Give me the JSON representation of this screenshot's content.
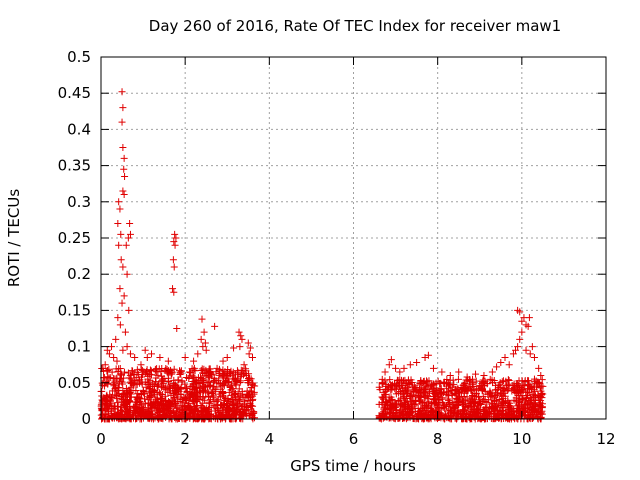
{
  "chart_data": {
    "type": "scatter",
    "title": "Day 260 of 2016, Rate Of TEC Index for receiver maw1",
    "xlabel": "GPS time / hours",
    "ylabel": "ROTI / TECUs",
    "xlim": [
      0,
      12
    ],
    "ylim": [
      0,
      0.5
    ],
    "xticks": [
      0,
      2,
      4,
      6,
      8,
      10,
      12
    ],
    "yticks": [
      0,
      0.05,
      0.1,
      0.15,
      0.2,
      0.25,
      0.3,
      0.35,
      0.4,
      0.45,
      0.5
    ],
    "grid": true,
    "marker": "+",
    "color": "#e00000",
    "series": [
      {
        "name": "maw1",
        "points": [
          [
            0.5,
            0.452
          ],
          [
            0.52,
            0.43
          ],
          [
            0.5,
            0.41
          ],
          [
            0.52,
            0.375
          ],
          [
            0.55,
            0.36
          ],
          [
            0.54,
            0.345
          ],
          [
            0.56,
            0.335
          ],
          [
            0.52,
            0.315
          ],
          [
            0.55,
            0.31
          ],
          [
            0.42,
            0.3
          ],
          [
            0.45,
            0.29
          ],
          [
            0.4,
            0.27
          ],
          [
            0.47,
            0.255
          ],
          [
            0.68,
            0.27
          ],
          [
            0.7,
            0.255
          ],
          [
            0.65,
            0.25
          ],
          [
            0.6,
            0.24
          ],
          [
            0.42,
            0.24
          ],
          [
            0.48,
            0.22
          ],
          [
            0.52,
            0.21
          ],
          [
            0.62,
            0.2
          ],
          [
            0.45,
            0.18
          ],
          [
            0.55,
            0.17
          ],
          [
            0.5,
            0.16
          ],
          [
            0.66,
            0.15
          ],
          [
            0.4,
            0.14
          ],
          [
            0.46,
            0.13
          ],
          [
            0.58,
            0.12
          ],
          [
            0.35,
            0.11
          ],
          [
            0.62,
            0.1
          ],
          [
            0.52,
            0.095
          ],
          [
            0.7,
            0.09
          ],
          [
            0.25,
            0.1
          ],
          [
            0.3,
            0.085
          ],
          [
            0.38,
            0.08
          ],
          [
            1.75,
            0.255
          ],
          [
            1.78,
            0.25
          ],
          [
            1.73,
            0.245
          ],
          [
            1.76,
            0.24
          ],
          [
            1.72,
            0.22
          ],
          [
            1.74,
            0.21
          ],
          [
            1.7,
            0.18
          ],
          [
            1.73,
            0.175
          ],
          [
            1.8,
            0.125
          ],
          [
            2.4,
            0.138
          ],
          [
            2.45,
            0.12
          ],
          [
            2.48,
            0.105
          ],
          [
            2.42,
            0.1
          ],
          [
            2.5,
            0.095
          ],
          [
            2.38,
            0.11
          ],
          [
            2.7,
            0.128
          ],
          [
            1.2,
            0.09
          ],
          [
            1.4,
            0.085
          ],
          [
            1.6,
            0.08
          ],
          [
            2.0,
            0.085
          ],
          [
            2.2,
            0.08
          ],
          [
            2.3,
            0.09
          ],
          [
            2.9,
            0.08
          ],
          [
            3.0,
            0.085
          ],
          [
            3.15,
            0.098
          ],
          [
            3.28,
            0.12
          ],
          [
            3.32,
            0.115
          ],
          [
            3.35,
            0.11
          ],
          [
            3.3,
            0.1
          ],
          [
            3.5,
            0.105
          ],
          [
            3.55,
            0.098
          ],
          [
            3.52,
            0.09
          ],
          [
            3.6,
            0.085
          ],
          [
            3.4,
            0.075
          ],
          [
            0.15,
            0.095
          ],
          [
            0.2,
            0.09
          ],
          [
            0.1,
            0.075
          ],
          [
            0.8,
            0.085
          ],
          [
            0.95,
            0.075
          ],
          [
            1.05,
            0.095
          ],
          [
            1.1,
            0.085
          ],
          [
            6.75,
            0.065
          ],
          [
            6.85,
            0.075
          ],
          [
            6.9,
            0.082
          ],
          [
            7.0,
            0.07
          ],
          [
            7.1,
            0.065
          ],
          [
            7.2,
            0.07
          ],
          [
            7.35,
            0.075
          ],
          [
            7.5,
            0.078
          ],
          [
            7.7,
            0.085
          ],
          [
            7.78,
            0.088
          ],
          [
            7.9,
            0.07
          ],
          [
            8.1,
            0.065
          ],
          [
            8.3,
            0.06
          ],
          [
            8.5,
            0.065
          ],
          [
            8.7,
            0.058
          ],
          [
            8.9,
            0.062
          ],
          [
            9.1,
            0.06
          ],
          [
            9.3,
            0.065
          ],
          [
            9.4,
            0.072
          ],
          [
            9.5,
            0.078
          ],
          [
            9.6,
            0.085
          ],
          [
            9.7,
            0.075
          ],
          [
            9.8,
            0.09
          ],
          [
            9.85,
            0.095
          ],
          [
            9.9,
            0.1
          ],
          [
            9.95,
            0.11
          ],
          [
            10.0,
            0.12
          ],
          [
            9.9,
            0.15
          ],
          [
            9.95,
            0.148
          ],
          [
            10.0,
            0.135
          ],
          [
            10.05,
            0.14
          ],
          [
            10.1,
            0.13
          ],
          [
            10.15,
            0.128
          ],
          [
            10.18,
            0.14
          ],
          [
            10.1,
            0.095
          ],
          [
            10.2,
            0.09
          ],
          [
            10.25,
            0.1
          ],
          [
            10.3,
            0.085
          ],
          [
            10.4,
            0.07
          ],
          [
            10.45,
            0.06
          ],
          [
            10.5,
            0.045
          ],
          [
            10.3,
            0.055
          ]
        ],
        "cluster_1": {
          "x_range": [
            0.0,
            3.65
          ],
          "y_range": [
            0.0,
            0.07
          ],
          "count": 1200
        },
        "cluster_2": {
          "x_range": [
            6.6,
            10.5
          ],
          "y_range": [
            0.0,
            0.055
          ],
          "count": 1100
        }
      }
    ]
  }
}
